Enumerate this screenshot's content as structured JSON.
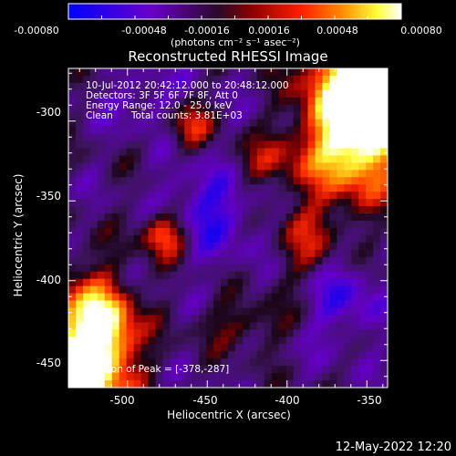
{
  "colorbar": {
    "tick_labels": [
      "-0.00080",
      "-0.00048",
      "-0.00016",
      "0.00016",
      "0.00048",
      "0.00080"
    ],
    "unit_label": "(photons cm⁻² s⁻¹ asec⁻²)",
    "colors": [
      "#0000ff",
      "#7a00c8",
      "#3a0c32",
      "#8b0000",
      "#ff2000",
      "#ff8a00",
      "#ffff40",
      "#ffffff"
    ]
  },
  "title": "Reconstructed RHESSI Image",
  "info": {
    "line1": "10-Jul-2012 20:42:12.000 to 20:48:12.000",
    "line2": "Detectors: 3F 5F 6F 7F 8F, Att 0",
    "line3": "Energy Range: 12.0 - 25.0 keV",
    "line4": "Clean      Total counts: 3.81E+03"
  },
  "peak_label": "Position of Peak = [-378,-287]",
  "chart_data": {
    "type": "heatmap",
    "title": "Reconstructed RHESSI Image",
    "xlabel": "Heliocentric X (arcsec)",
    "ylabel": "Heliocentric Y (arcsec)",
    "xlim": [
      -537,
      -337
    ],
    "ylim": [
      -467,
      -267
    ],
    "x_ticks": [
      "-500",
      "-450",
      "-400",
      "-350"
    ],
    "y_ticks": [
      "-300",
      "-350",
      "-400",
      "-450"
    ],
    "color_range": [
      -0.0008,
      0.0008
    ],
    "peak_position": [
      -378,
      -287
    ],
    "grid": false
  },
  "footer_timestamp": "12-May-2022 12:20"
}
